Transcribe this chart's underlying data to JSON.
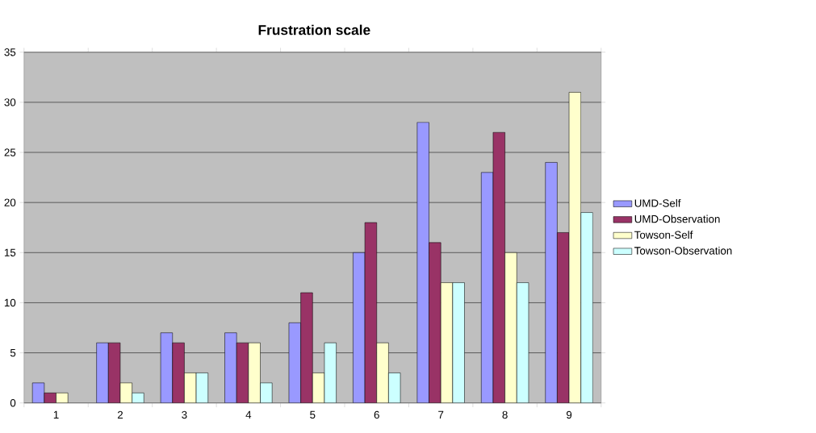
{
  "chart_data": {
    "type": "bar",
    "title": "Frustration scale",
    "categories": [
      "1",
      "2",
      "3",
      "4",
      "5",
      "6",
      "7",
      "8",
      "9"
    ],
    "series": [
      {
        "name": "UMD-Self",
        "color": "#9999ff",
        "values": [
          2,
          6,
          7,
          7,
          8,
          15,
          28,
          23,
          24
        ]
      },
      {
        "name": "UMD-Observation",
        "color": "#993366",
        "values": [
          1,
          6,
          6,
          6,
          11,
          18,
          16,
          27,
          17
        ]
      },
      {
        "name": "Towson-Self",
        "color": "#ffffcc",
        "values": [
          1,
          2,
          3,
          6,
          3,
          6,
          12,
          15,
          31
        ]
      },
      {
        "name": "Towson-Observation",
        "color": "#ccffff",
        "values": [
          0,
          1,
          3,
          2,
          6,
          3,
          12,
          12,
          19
        ]
      }
    ],
    "ylim": [
      0,
      35
    ],
    "yticks": [
      0,
      5,
      10,
      15,
      20,
      25,
      30,
      35
    ],
    "grid": "y",
    "legend": "right"
  }
}
